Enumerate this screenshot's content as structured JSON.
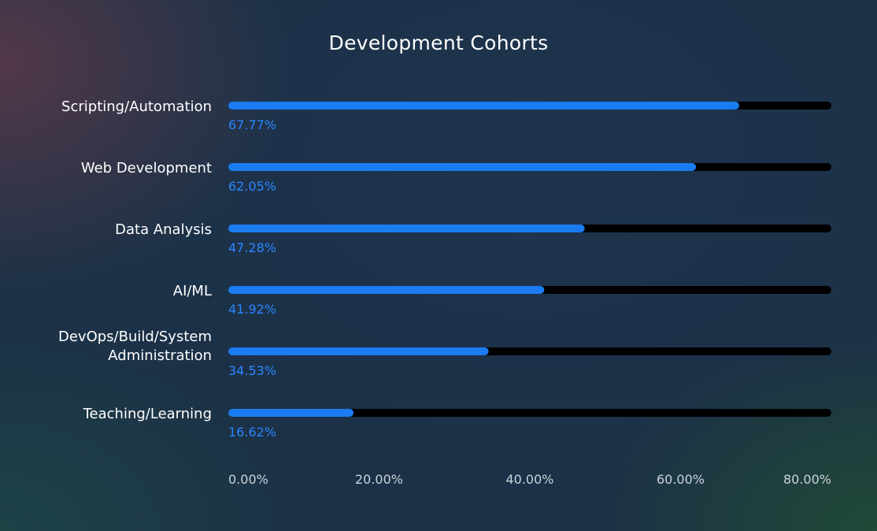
{
  "chart_data": {
    "type": "bar",
    "orientation": "horizontal",
    "title": "Development Cohorts",
    "categories": [
      "Scripting/Automation",
      "Web Development",
      "Data Analysis",
      "AI/ML",
      "DevOps/Build/System Administration",
      "Teaching/Learning"
    ],
    "category_lines": [
      [
        "Scripting/Automation"
      ],
      [
        "Web Development"
      ],
      [
        "Data Analysis"
      ],
      [
        "AI/ML"
      ],
      [
        "DevOps/Build/System",
        "Administration"
      ],
      [
        "Teaching/Learning"
      ]
    ],
    "values": [
      67.77,
      62.05,
      47.28,
      41.92,
      34.53,
      16.62
    ],
    "value_labels": [
      "67.77%",
      "62.05%",
      "47.28%",
      "41.92%",
      "34.53%",
      "16.62%"
    ],
    "xlim": [
      0,
      80
    ],
    "x_ticks": [
      0,
      20,
      40,
      60,
      80
    ],
    "x_tick_labels": [
      "0.00%",
      "20.00%",
      "40.00%",
      "60.00%",
      "80.00%"
    ],
    "grid": false,
    "legend": "none",
    "colors": {
      "bar": "#1a7cf0",
      "track": "#000000",
      "value_label": "#2a86ff",
      "category_label": "#ffffff",
      "tick_label": "#c9d3dc",
      "title": "#ffffff"
    }
  }
}
